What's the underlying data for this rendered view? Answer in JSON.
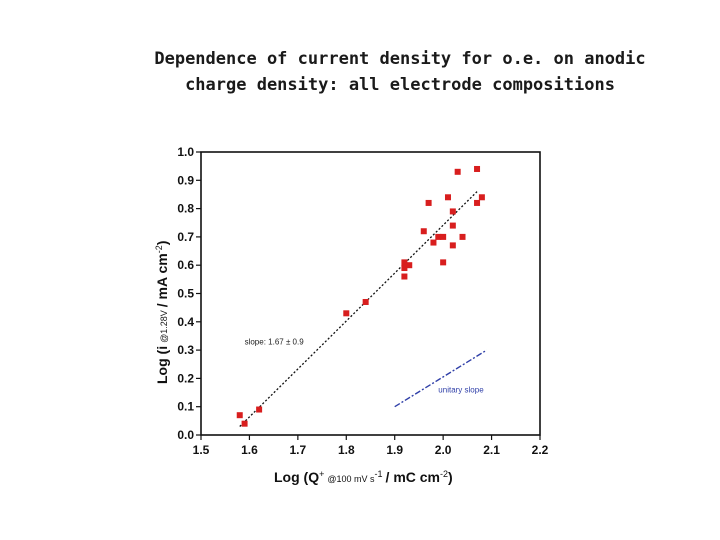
{
  "slide": {
    "title_line1": "Dependence of current density for o.e. on anodic",
    "title_line2": "charge density: all electrode compositions"
  },
  "chart_data": {
    "type": "scatter",
    "title": "",
    "xlabel_main": "Log (Q",
    "xlabel_sup": "+",
    "xlabel_sub": "@100 mV s",
    "xlabel_sub_sup": "-1",
    "xlabel_tail": "/ mC cm",
    "xlabel_tail_sup": "-2",
    "xlabel_close": ")",
    "ylabel_main": "Log (i",
    "ylabel_sub": "@1.28V",
    "ylabel_tail": "/ mA cm",
    "ylabel_tail_sup": "-2",
    "ylabel_close": ")",
    "xlim": [
      1.5,
      2.2
    ],
    "ylim": [
      0.0,
      1.0
    ],
    "xticks": [
      "1.5",
      "1.6",
      "1.7",
      "1.8",
      "1.9",
      "2.0",
      "2.1",
      "2.2"
    ],
    "yticks": [
      "0.0",
      "0.1",
      "0.2",
      "0.3",
      "0.4",
      "0.5",
      "0.6",
      "0.7",
      "0.8",
      "0.9",
      "1.0"
    ],
    "grid": false,
    "marker_color": "#d81e1e",
    "points": [
      {
        "x": 1.58,
        "y": 0.07
      },
      {
        "x": 1.59,
        "y": 0.04
      },
      {
        "x": 1.62,
        "y": 0.09
      },
      {
        "x": 1.8,
        "y": 0.43
      },
      {
        "x": 1.84,
        "y": 0.47
      },
      {
        "x": 1.92,
        "y": 0.56
      },
      {
        "x": 1.92,
        "y": 0.59
      },
      {
        "x": 1.93,
        "y": 0.6
      },
      {
        "x": 1.92,
        "y": 0.61
      },
      {
        "x": 1.96,
        "y": 0.72
      },
      {
        "x": 1.97,
        "y": 0.82
      },
      {
        "x": 1.98,
        "y": 0.68
      },
      {
        "x": 1.99,
        "y": 0.7
      },
      {
        "x": 2.0,
        "y": 0.7
      },
      {
        "x": 2.0,
        "y": 0.61
      },
      {
        "x": 2.01,
        "y": 0.84
      },
      {
        "x": 2.02,
        "y": 0.67
      },
      {
        "x": 2.02,
        "y": 0.74
      },
      {
        "x": 2.02,
        "y": 0.79
      },
      {
        "x": 2.03,
        "y": 0.93
      },
      {
        "x": 2.04,
        "y": 0.7
      },
      {
        "x": 2.07,
        "y": 0.94
      },
      {
        "x": 2.07,
        "y": 0.82
      },
      {
        "x": 2.08,
        "y": 0.84
      }
    ],
    "fit_line": {
      "x1": 1.58,
      "y1": 0.03,
      "x2": 2.07,
      "y2": 0.86,
      "color": "#111111",
      "style": "dotted"
    },
    "fit_label": "slope: 1.67 ± 0.9",
    "fit_label_at": {
      "x": 1.59,
      "y": 0.32
    },
    "unitary_line": {
      "x1": 1.9,
      "y1": 0.1,
      "x2": 2.09,
      "y2": 0.3,
      "color": "#2f3fa8",
      "style": "dashdot"
    },
    "unitary_label": "unitary slope",
    "unitary_label_at": {
      "x": 1.99,
      "y": 0.15
    }
  }
}
